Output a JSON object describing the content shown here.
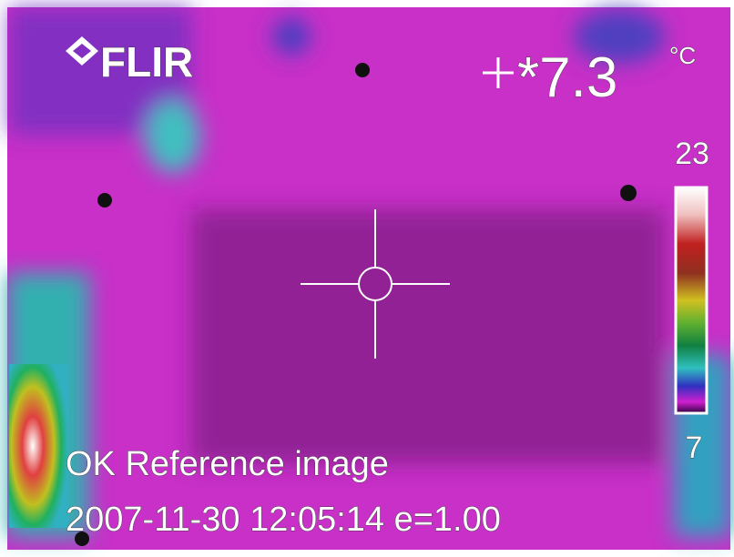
{
  "brand": "FLIR",
  "spot_reading": "*7.3",
  "unit": "°C",
  "scale": {
    "max": "23",
    "min": "7"
  },
  "status": "OK Reference image",
  "info": "2007-11-30 12:05:14 e=1.00"
}
